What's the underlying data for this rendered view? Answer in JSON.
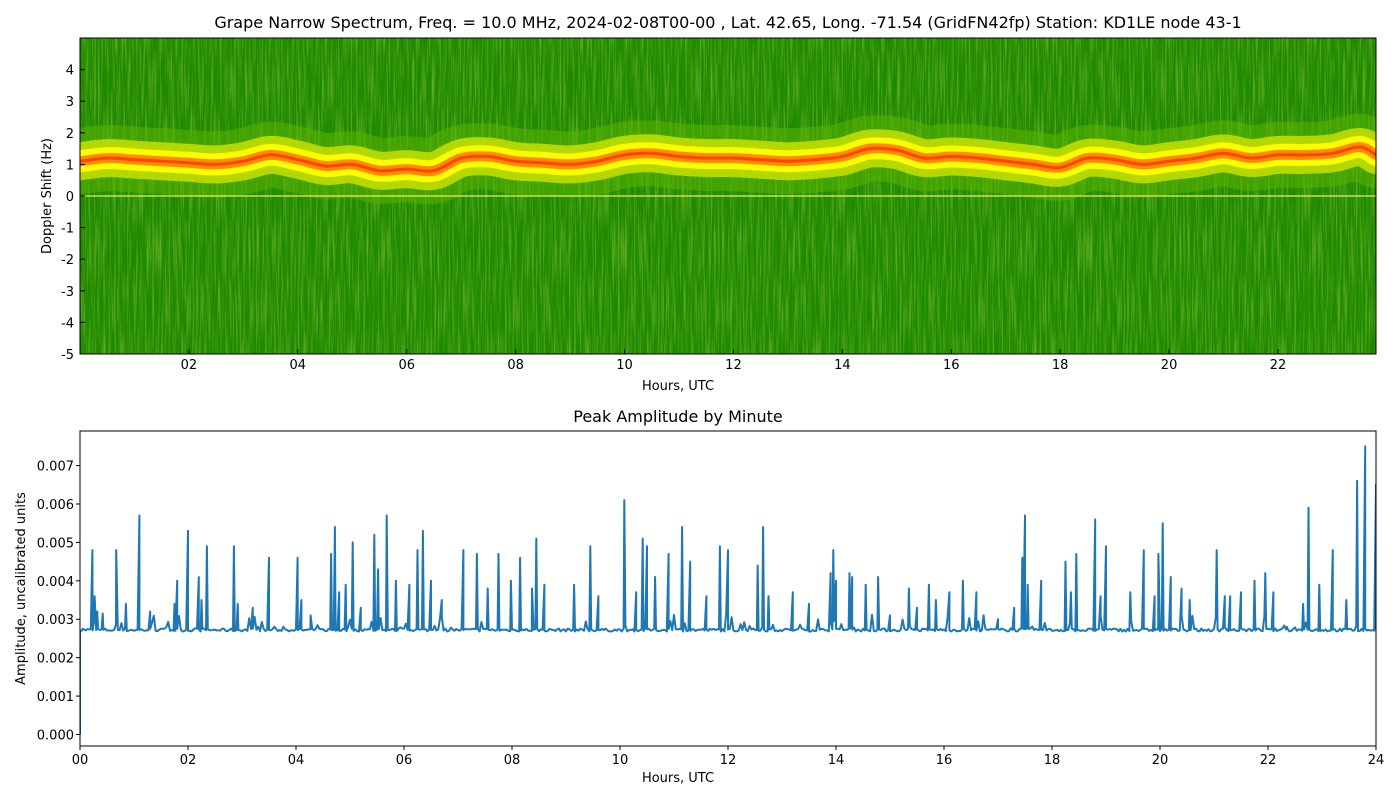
{
  "chart_data": [
    {
      "type": "heatmap",
      "title": "Grape Narrow Spectrum, Freq. = 10.0 MHz, 2024-02-08T00-00 , Lat.  42.65, Long. -71.54 (GridFN42fp) Station: KD1LE node 43-1",
      "xlabel": "Hours, UTC",
      "ylabel": "Doppler Shift (Hz)",
      "xlim": [
        0,
        23.8
      ],
      "ylim": [
        -5,
        5
      ],
      "x_ticks": [
        "02",
        "04",
        "06",
        "08",
        "10",
        "12",
        "14",
        "16",
        "18",
        "20",
        "22"
      ],
      "x_tick_values": [
        2,
        4,
        6,
        8,
        10,
        12,
        14,
        16,
        18,
        20,
        22
      ],
      "y_ticks": [
        "4",
        "3",
        "2",
        "1",
        "0",
        "-1",
        "-2",
        "-3",
        "-4",
        "-5"
      ],
      "y_tick_values": [
        4,
        3,
        2,
        1,
        0,
        -1,
        -2,
        -3,
        -4,
        -5
      ],
      "colormap": [
        "#1f8a00",
        "#59b500",
        "#c8e000",
        "#ffff00",
        "#ff8c00",
        "#ff3c00"
      ],
      "carrier_line_hz": 0,
      "doppler_trace": {
        "x": [
          0,
          0.5,
          1,
          1.5,
          2,
          2.5,
          3,
          3.5,
          4,
          4.5,
          5,
          5.5,
          6,
          6.5,
          7,
          7.5,
          8,
          8.5,
          9,
          9.5,
          10,
          10.5,
          11,
          11.5,
          12,
          12.5,
          13,
          13.5,
          14,
          14.5,
          15,
          15.5,
          16,
          16.5,
          17,
          17.5,
          18,
          18.5,
          19,
          19.5,
          20,
          20.5,
          21,
          21.5,
          22,
          22.5,
          23,
          23.5,
          23.8
        ],
        "y": [
          1.1,
          1.2,
          1.15,
          1.1,
          1.05,
          1.0,
          1.1,
          1.3,
          1.15,
          0.95,
          1.0,
          0.8,
          0.85,
          0.8,
          1.2,
          1.25,
          1.1,
          1.05,
          1.0,
          1.1,
          1.3,
          1.35,
          1.25,
          1.2,
          1.2,
          1.15,
          1.1,
          1.15,
          1.25,
          1.5,
          1.45,
          1.2,
          1.25,
          1.2,
          1.1,
          1.0,
          0.9,
          1.2,
          1.15,
          1.0,
          1.1,
          1.2,
          1.35,
          1.2,
          1.3,
          1.3,
          1.35,
          1.55,
          1.3
        ]
      }
    },
    {
      "type": "line",
      "title": "Peak Amplitude by Minute",
      "xlabel": "Hours, UTC",
      "ylabel": "Amplitude, uncalibrated units",
      "xlim": [
        0,
        24
      ],
      "ylim": [
        -0.0003,
        0.0079
      ],
      "x_ticks": [
        "00",
        "02",
        "04",
        "06",
        "08",
        "10",
        "12",
        "14",
        "16",
        "18",
        "20",
        "22",
        "24"
      ],
      "x_tick_values": [
        0,
        2,
        4,
        6,
        8,
        10,
        12,
        14,
        16,
        18,
        20,
        22,
        24
      ],
      "y_ticks": [
        "0.000",
        "0.001",
        "0.002",
        "0.003",
        "0.004",
        "0.005",
        "0.006",
        "0.007"
      ],
      "y_tick_values": [
        0,
        0.001,
        0.002,
        0.003,
        0.004,
        0.005,
        0.006,
        0.007
      ],
      "baseline": 0.00272,
      "line_color": "#1f77b4",
      "series": [
        {
          "x": [
            0,
            0.02,
            0.05,
            0.1,
            0.23,
            0.27,
            0.32,
            0.42,
            0.67,
            0.85,
            1.1,
            1.3,
            1.75,
            1.8,
            2.0,
            2.2,
            2.25,
            2.35,
            2.85,
            2.92,
            3.2,
            3.5,
            4.03,
            4.1,
            4.27,
            4.65,
            4.72,
            4.8,
            4.92,
            5.05,
            5.2,
            5.45,
            5.52,
            5.68,
            5.85,
            6.1,
            6.25,
            6.35,
            6.5,
            6.7,
            7.1,
            7.35,
            7.55,
            7.75,
            7.98,
            8.15,
            8.37,
            8.45,
            8.6,
            9.15,
            9.45,
            9.6,
            10.08,
            10.3,
            10.42,
            10.5,
            10.65,
            10.9,
            11.15,
            11.3,
            11.6,
            11.85,
            12.0,
            12.55,
            12.65,
            12.75,
            13.2,
            13.5,
            13.9,
            13.95,
            14.0,
            14.25,
            14.3,
            14.55,
            14.78,
            15.0,
            15.35,
            15.5,
            15.72,
            15.85,
            16.1,
            16.35,
            16.6,
            16.75,
            17.0,
            17.3,
            17.45,
            17.5,
            17.55,
            17.8,
            18.25,
            18.35,
            18.45,
            18.8,
            18.9,
            19.0,
            19.45,
            19.7,
            19.9,
            19.97,
            20.05,
            20.2,
            20.4,
            20.55,
            21.05,
            21.2,
            21.3,
            21.5,
            21.75,
            21.95,
            22.1,
            22.35,
            22.65,
            22.75,
            22.95,
            23.2,
            23.45,
            23.65,
            23.8,
            24.0
          ],
          "y": [
            0.0,
            0.0027,
            0.00275,
            0.00272,
            0.0048,
            0.0036,
            0.0032,
            0.00315,
            0.0048,
            0.0034,
            0.0057,
            0.0032,
            0.0034,
            0.004,
            0.0053,
            0.0041,
            0.0035,
            0.0049,
            0.0049,
            0.0034,
            0.0033,
            0.0046,
            0.0046,
            0.0035,
            0.0031,
            0.0047,
            0.0054,
            0.0037,
            0.0039,
            0.005,
            0.0033,
            0.0052,
            0.0043,
            0.0057,
            0.004,
            0.0039,
            0.0048,
            0.0053,
            0.004,
            0.0035,
            0.0048,
            0.0047,
            0.0038,
            0.0047,
            0.004,
            0.0046,
            0.0038,
            0.0051,
            0.0039,
            0.0039,
            0.0049,
            0.0036,
            0.0061,
            0.0037,
            0.0051,
            0.0049,
            0.0041,
            0.0047,
            0.0054,
            0.0045,
            0.0036,
            0.0049,
            0.0048,
            0.0044,
            0.0054,
            0.0036,
            0.0037,
            0.0034,
            0.0042,
            0.0048,
            0.004,
            0.0042,
            0.0041,
            0.0039,
            0.0041,
            0.0031,
            0.0038,
            0.0033,
            0.0039,
            0.0035,
            0.0037,
            0.004,
            0.0037,
            0.0029,
            0.003,
            0.0033,
            0.0046,
            0.0057,
            0.0039,
            0.004,
            0.0045,
            0.0037,
            0.0047,
            0.0056,
            0.0036,
            0.0049,
            0.0037,
            0.0048,
            0.0036,
            0.0047,
            0.0055,
            0.0041,
            0.0038,
            0.0035,
            0.0048,
            0.0036,
            0.0036,
            0.0037,
            0.004,
            0.0042,
            0.0037,
            0.0028,
            0.0034,
            0.0059,
            0.0039,
            0.0048,
            0.0035,
            0.0066,
            0.0075,
            0.0065
          ]
        }
      ]
    }
  ]
}
